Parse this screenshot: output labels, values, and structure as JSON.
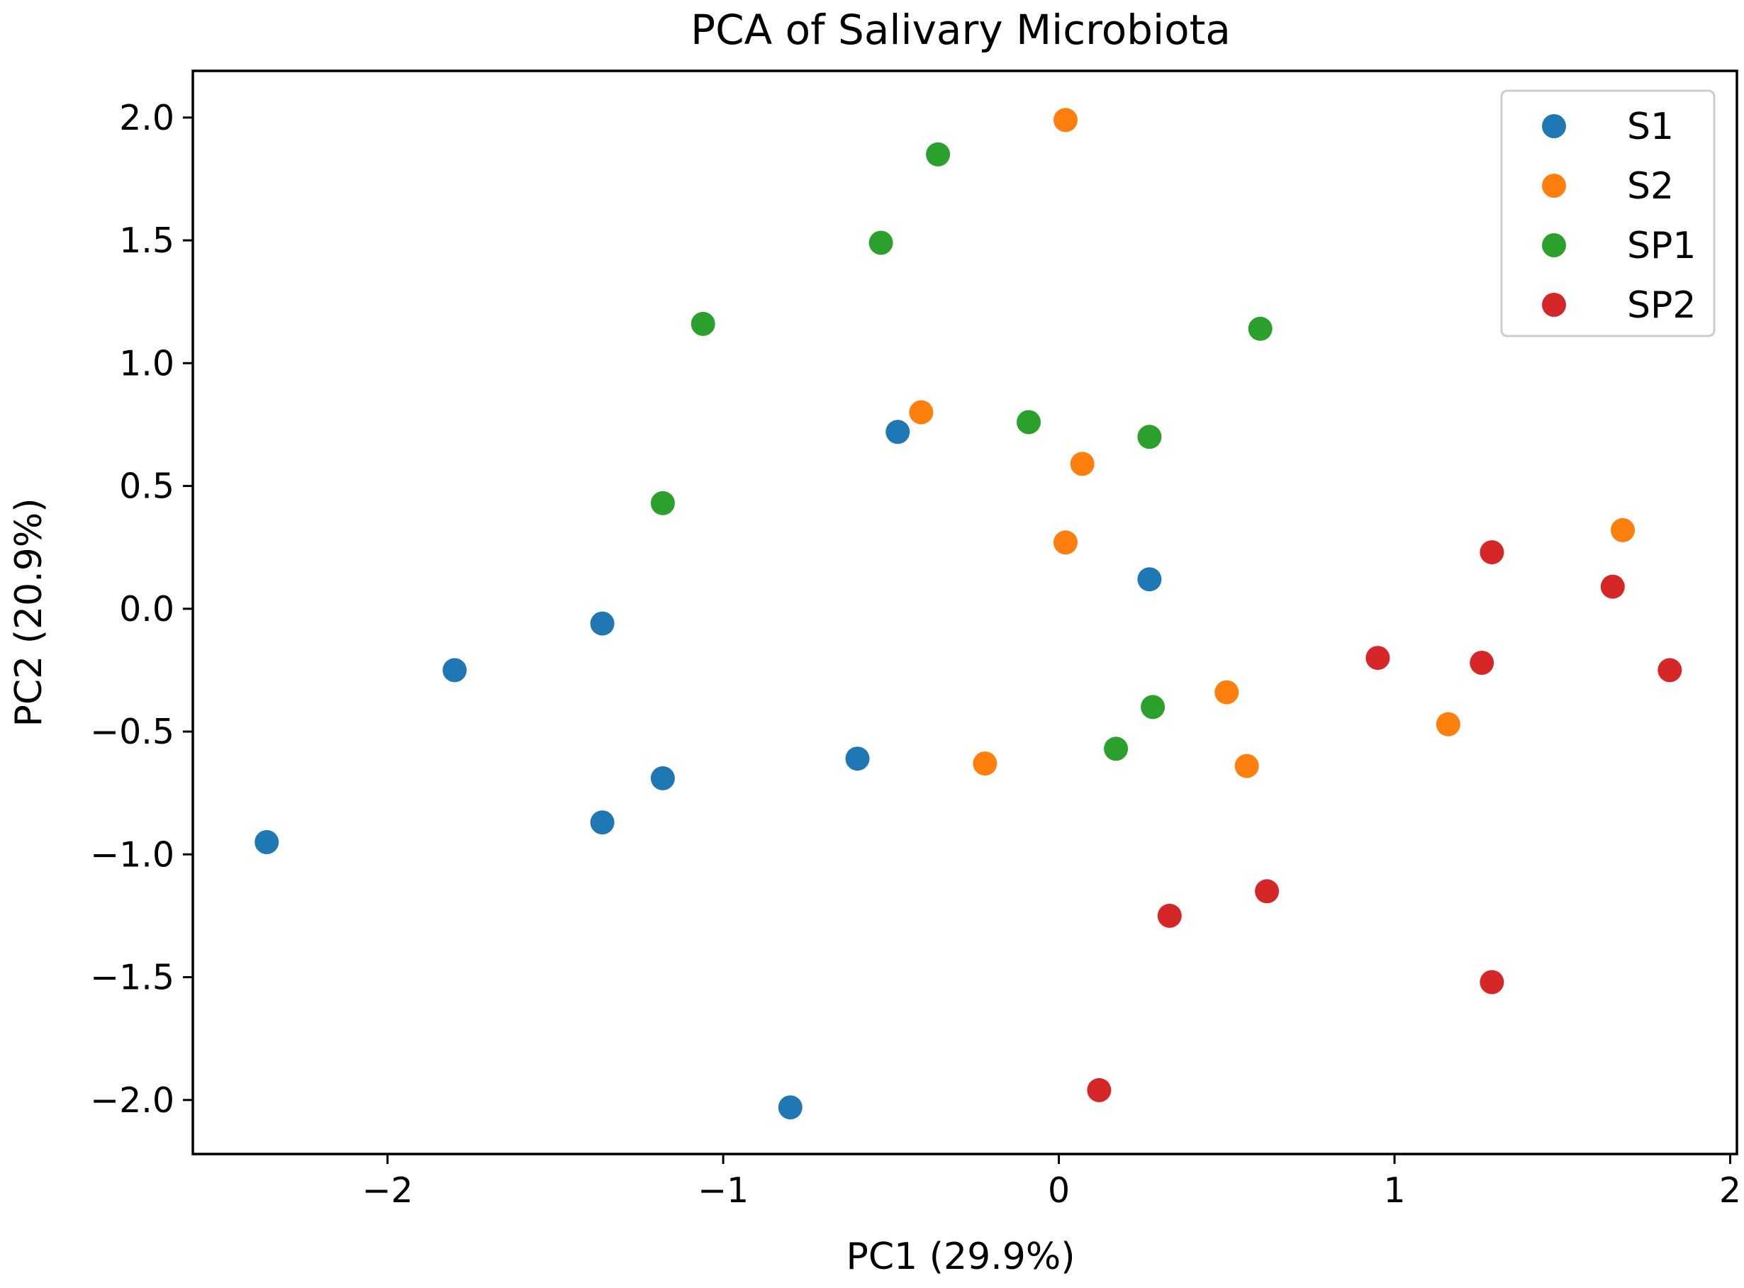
{
  "chart_data": {
    "type": "scatter",
    "title": "PCA of Salivary Microbiota",
    "xlabel": "PC1 (29.9%)",
    "ylabel": "PC2 (20.9%)",
    "xlim": [
      -2.58,
      2.02
    ],
    "ylim": [
      -2.22,
      2.19
    ],
    "xticks": [
      -2,
      -1,
      0,
      1,
      2
    ],
    "xtick_labels": [
      "−2",
      "−1",
      "0",
      "1",
      "2"
    ],
    "yticks": [
      2.0,
      1.5,
      1.0,
      0.5,
      0.0,
      -0.5,
      -1.0,
      -1.5,
      -2.0
    ],
    "ytick_labels": [
      "2.0",
      "1.5",
      "1.0",
      "0.5",
      "0.0",
      "−0.5",
      "−1.0",
      "−1.5",
      "−2.0"
    ],
    "grid": false,
    "legend_position": "top-right",
    "series": [
      {
        "name": "S1",
        "color": "#1f77b4",
        "points": [
          [
            -0.48,
            0.72
          ],
          [
            0.27,
            0.12
          ],
          [
            -1.36,
            -0.06
          ],
          [
            -1.8,
            -0.25
          ],
          [
            -0.6,
            -0.61
          ],
          [
            -1.18,
            -0.69
          ],
          [
            -1.36,
            -0.87
          ],
          [
            -2.36,
            -0.95
          ],
          [
            -0.8,
            -2.03
          ]
        ]
      },
      {
        "name": "S2",
        "color": "#ff7f0e",
        "points": [
          [
            0.02,
            1.99
          ],
          [
            -0.41,
            0.8
          ],
          [
            0.07,
            0.59
          ],
          [
            0.02,
            0.27
          ],
          [
            1.68,
            0.32
          ],
          [
            0.5,
            -0.34
          ],
          [
            1.16,
            -0.47
          ],
          [
            -0.22,
            -0.63
          ],
          [
            0.56,
            -0.64
          ]
        ]
      },
      {
        "name": "SP1",
        "color": "#2ca02c",
        "points": [
          [
            -0.36,
            1.85
          ],
          [
            -0.53,
            1.49
          ],
          [
            -1.06,
            1.16
          ],
          [
            0.6,
            1.14
          ],
          [
            -0.09,
            0.76
          ],
          [
            0.27,
            0.7
          ],
          [
            -1.18,
            0.43
          ],
          [
            0.28,
            -0.4
          ],
          [
            0.17,
            -0.57
          ]
        ]
      },
      {
        "name": "SP2",
        "color": "#d62728",
        "points": [
          [
            1.29,
            0.23
          ],
          [
            1.65,
            0.09
          ],
          [
            0.95,
            -0.2
          ],
          [
            1.26,
            -0.22
          ],
          [
            1.82,
            -0.25
          ],
          [
            0.62,
            -1.15
          ],
          [
            0.33,
            -1.25
          ],
          [
            1.29,
            -1.52
          ],
          [
            0.12,
            -1.96
          ]
        ]
      }
    ]
  }
}
